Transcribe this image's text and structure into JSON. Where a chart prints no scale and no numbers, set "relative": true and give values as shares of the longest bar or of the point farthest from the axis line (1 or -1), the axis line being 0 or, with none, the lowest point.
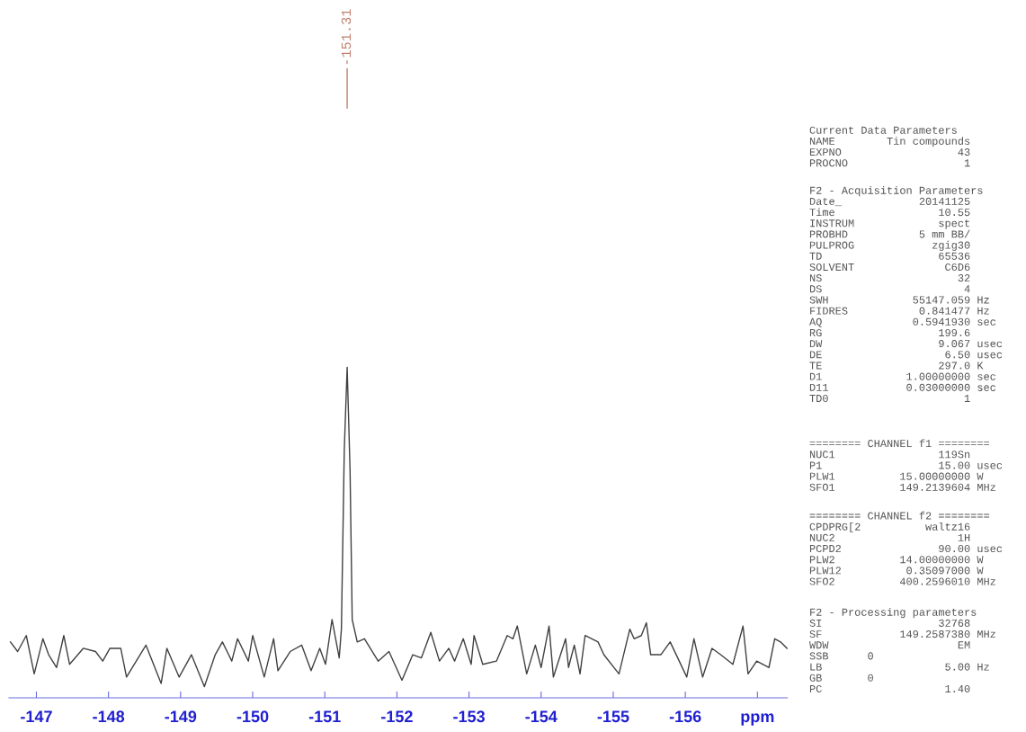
{
  "chart_data": {
    "type": "line",
    "relative": true,
    "x": [
      -146.64,
      -146.74,
      -146.86,
      -146.97,
      -147.09,
      -147.17,
      -147.28,
      -147.38,
      -147.46,
      -147.65,
      -147.82,
      -147.92,
      -148.02,
      -148.17,
      -148.25,
      -148.52,
      -148.73,
      -148.81,
      -148.98,
      -149.15,
      -149.33,
      -149.48,
      -149.58,
      -149.71,
      -149.79,
      -149.94,
      -150.0,
      -150.16,
      -150.29,
      -150.35,
      -150.52,
      -150.68,
      -150.81,
      -150.93,
      -151.01,
      -151.1,
      -151.2,
      -151.23,
      -151.27,
      -151.31,
      -151.35,
      -151.38,
      -151.45,
      -151.55,
      -151.74,
      -151.89,
      -152.07,
      -152.22,
      -152.34,
      -152.47,
      -152.59,
      -152.72,
      -152.8,
      -152.92,
      -153.03,
      -153.07,
      -153.19,
      -153.38,
      -153.53,
      -153.61,
      -153.67,
      -153.8,
      -153.92,
      -154.0,
      -154.11,
      -154.17,
      -154.34,
      -154.38,
      -154.46,
      -154.54,
      -154.61,
      -154.79,
      -154.87,
      -155.08,
      -155.23,
      -155.29,
      -155.39,
      -155.46,
      -155.52,
      -155.66,
      -155.79,
      -156.02,
      -156.12,
      -156.24,
      -156.37,
      -156.49,
      -156.66,
      -156.8,
      -156.87,
      -156.99,
      -157.16,
      -157.24,
      -157.32,
      -157.41
    ],
    "series": [
      {
        "color": "#404040",
        "values": [
          0.14,
          0.11,
          0.16,
          0.04,
          0.15,
          0.1,
          0.06,
          0.16,
          0.07,
          0.12,
          0.11,
          0.08,
          0.12,
          0.12,
          0.03,
          0.13,
          0.01,
          0.12,
          0.03,
          0.1,
          0.0,
          0.1,
          0.14,
          0.08,
          0.15,
          0.08,
          0.16,
          0.03,
          0.15,
          0.05,
          0.11,
          0.13,
          0.05,
          0.12,
          0.07,
          0.21,
          0.09,
          0.18,
          0.74,
          1.0,
          0.68,
          0.21,
          0.14,
          0.15,
          0.08,
          0.11,
          0.02,
          0.1,
          0.09,
          0.17,
          0.08,
          0.12,
          0.08,
          0.15,
          0.07,
          0.16,
          0.07,
          0.08,
          0.16,
          0.15,
          0.19,
          0.04,
          0.13,
          0.06,
          0.19,
          0.03,
          0.15,
          0.06,
          0.13,
          0.04,
          0.16,
          0.14,
          0.1,
          0.04,
          0.18,
          0.15,
          0.16,
          0.2,
          0.1,
          0.1,
          0.14,
          0.03,
          0.15,
          0.03,
          0.12,
          0.1,
          0.07,
          0.19,
          0.04,
          0.08,
          0.06,
          0.15,
          0.14,
          0.12
        ]
      }
    ],
    "xlim": [
      -146.62,
      -157.42
    ],
    "xticks": [
      -147,
      -148,
      -149,
      -150,
      -151,
      -152,
      -153,
      -154,
      -155,
      -156,
      {
        "value": -157,
        "label": "ppm"
      }
    ],
    "grid": false,
    "legend": false,
    "marker": "none",
    "line_style": "solid",
    "annotations": [
      {
        "text": "-151.31",
        "x": -151.31
      },
      "Current Data Parameters\nNAME        Tin compounds\nEXPNO                  43\nPROCNO                  1",
      "F2 - Acquisition Parameters\nDate_            20141125\nTime                10.55\nINSTRUM             spect\nPROBHD           5 mm BB/\nPULPROG            zgig30\nTD                  65536\nSOLVENT              C6D6\nNS                     32\nDS                      4\nSWH             55147.059 Hz\nFIDRES           0.841477 Hz\nAQ              0.5941930 sec\nRG                  199.6\nDW                  9.067 usec\nDE                   6.50 usec\nTE                  297.0 K\nD1             1.00000000 sec\nD11            0.03000000 sec\nTD0                     1",
      "======== CHANNEL f1 ========\nNUC1                119Sn\nP1                  15.00 usec\nPLW1          15.00000000 W\nSFO1          149.2139604 MHz",
      "======== CHANNEL f2 ========\nCPDPRG[2          waltz16\nNUC2                   1H\nPCPD2               90.00 usec\nPLW2          14.00000000 W\nPLW12          0.35097000 W\nSFO2          400.2596010 MHz",
      "F2 - Processing parameters\nSI                  32768\nSF            149.2587380 MHz\nWDW                    EM\nSSB      0\nLB                   5.00 Hz\nGB       0\nPC                   1.40"
    ]
  }
}
